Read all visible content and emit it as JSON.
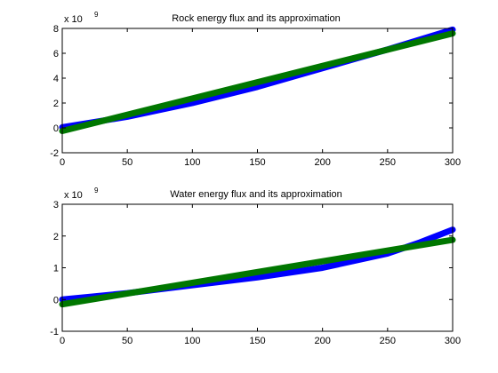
{
  "chart_data": [
    {
      "type": "line",
      "title": "Rock energy flux and its approximation",
      "xlabel": "",
      "ylabel": "",
      "y_multiplier": "x 10",
      "y_exponent": "9",
      "xlim": [
        0,
        300
      ],
      "ylim": [
        -2,
        8
      ],
      "xticks": [
        0,
        50,
        100,
        150,
        200,
        250,
        300
      ],
      "yticks": [
        -2,
        0,
        2,
        4,
        6,
        8
      ],
      "grid": false,
      "series": [
        {
          "color": "#0000ff",
          "x": [
            0,
            50,
            100,
            150,
            200,
            250,
            300
          ],
          "y": [
            0.05,
            0.9,
            2.0,
            3.3,
            4.8,
            6.3,
            7.9
          ]
        },
        {
          "color": "#007700",
          "x": [
            0,
            300
          ],
          "y": [
            -0.25,
            7.6
          ]
        }
      ]
    },
    {
      "type": "line",
      "title": "Water energy flux and its approximation",
      "xlabel": "",
      "ylabel": "",
      "y_multiplier": "x 10",
      "y_exponent": "9",
      "xlim": [
        0,
        300
      ],
      "ylim": [
        -1,
        3
      ],
      "xticks": [
        0,
        50,
        100,
        150,
        200,
        250,
        300
      ],
      "yticks": [
        -1,
        0,
        1,
        2,
        3
      ],
      "grid": false,
      "series": [
        {
          "color": "#0000ff",
          "x": [
            0,
            25,
            50,
            100,
            150,
            200,
            250,
            275,
            300
          ],
          "y": [
            0.0,
            0.1,
            0.2,
            0.45,
            0.7,
            1.0,
            1.45,
            1.8,
            2.2
          ]
        },
        {
          "color": "#007700",
          "x": [
            0,
            300
          ],
          "y": [
            -0.15,
            1.88
          ]
        }
      ]
    }
  ]
}
